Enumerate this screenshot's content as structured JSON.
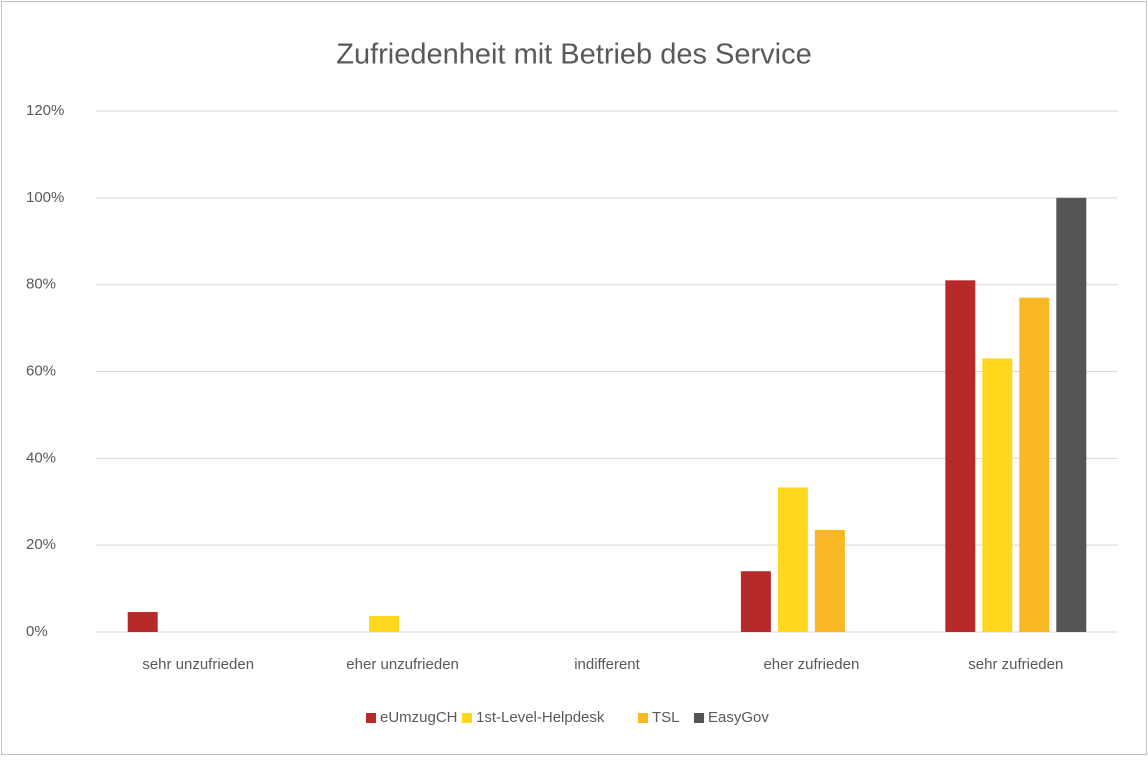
{
  "chart_data": {
    "type": "bar",
    "title": "Zufriedenheit mit Betrieb des Service",
    "categories": [
      "sehr unzufrieden",
      "eher unzufrieden",
      "indifferent",
      "eher zufrieden",
      "sehr zufrieden"
    ],
    "series": [
      {
        "name": "eUmzugCH",
        "color": "#b72a2a",
        "values": [
          4.6,
          0,
          0,
          14,
          81
        ]
      },
      {
        "name": "1st-Level-Helpdesk",
        "color": "#ffd71e",
        "values": [
          0,
          3.7,
          0,
          33.3,
          63
        ]
      },
      {
        "name": "TSL",
        "color": "#f8b822",
        "values": [
          0,
          0,
          0,
          23.5,
          77
        ]
      },
      {
        "name": "EasyGov",
        "color": "#555555",
        "values": [
          0,
          0,
          0,
          0,
          100
        ]
      }
    ],
    "ylim": [
      0,
      120
    ],
    "yticks": [
      {
        "value": 0,
        "label": "0%"
      },
      {
        "value": 20,
        "label": "20%"
      },
      {
        "value": 40,
        "label": "40%"
      },
      {
        "value": 60,
        "label": "60%"
      },
      {
        "value": 80,
        "label": "80%"
      },
      {
        "value": 100,
        "label": "100%"
      },
      {
        "value": 120,
        "label": "120%"
      }
    ],
    "grid": true,
    "legend": "bottom"
  }
}
